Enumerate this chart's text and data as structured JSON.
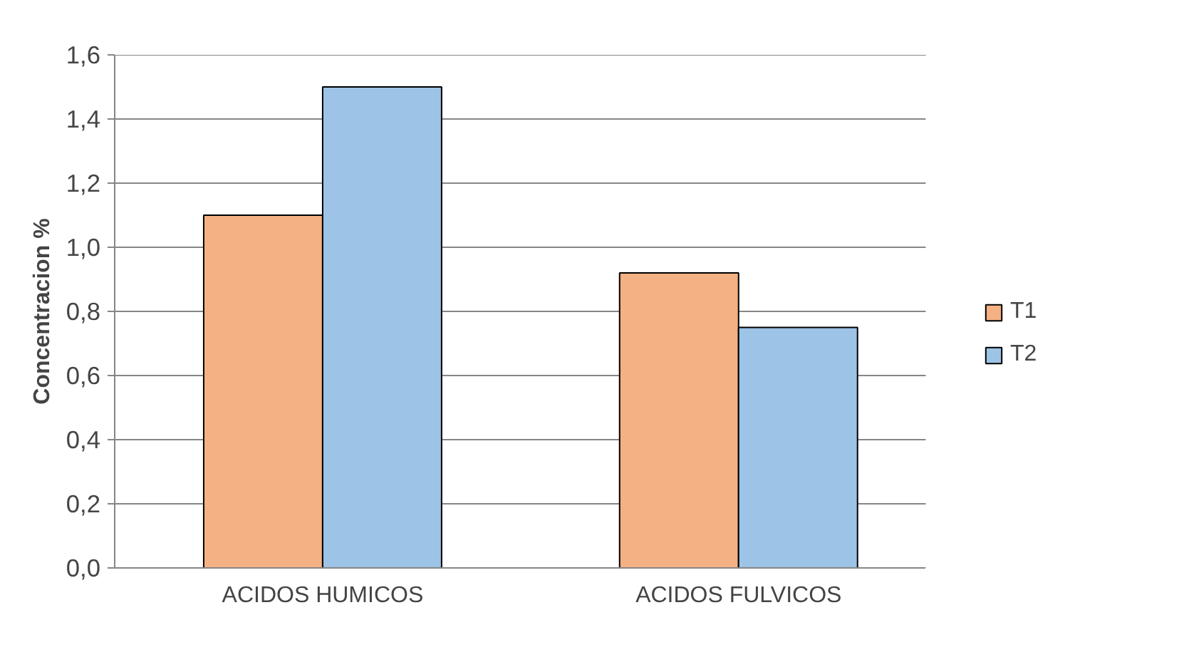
{
  "chart_data": {
    "type": "bar",
    "ylabel": "Concentracion %",
    "categories": [
      "ACIDOS HUMICOS",
      "ACIDOS FULVICOS"
    ],
    "series": [
      {
        "name": "T1",
        "color": "#f4b183",
        "values": [
          1.1,
          0.92
        ]
      },
      {
        "name": "T2",
        "color": "#9dc3e6",
        "values": [
          1.5,
          0.75
        ]
      }
    ],
    "ylim": [
      0,
      1.6
    ],
    "yticks": [
      {
        "value": 0,
        "label": "0,0"
      },
      {
        "value": 0.2,
        "label": "0,2"
      },
      {
        "value": 0.4,
        "label": "0,4"
      },
      {
        "value": 0.6,
        "label": "0,6"
      },
      {
        "value": 0.8,
        "label": "0,8"
      },
      {
        "value": 1.0,
        "label": "1,0"
      },
      {
        "value": 1.2,
        "label": "1,2"
      },
      {
        "value": 1.4,
        "label": "1,4"
      },
      {
        "value": 1.6,
        "label": "1,6"
      }
    ],
    "grid": "y",
    "legend": "right"
  }
}
